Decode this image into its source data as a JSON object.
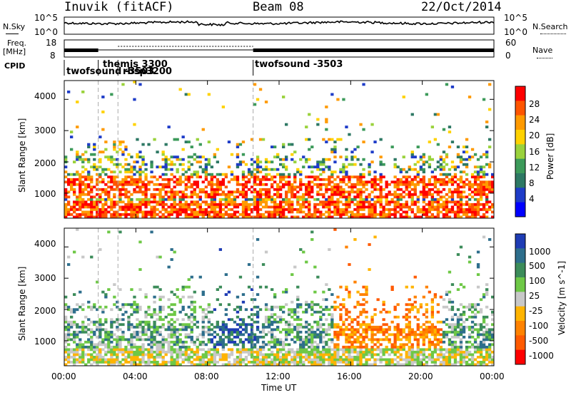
{
  "header": {
    "station": "Inuvik (fitACF)",
    "beam": "Beam 08",
    "date": "22/Oct/2014"
  },
  "noise_panel": {
    "left_label": "N.Sky",
    "right_label": "N.Search",
    "left_ticks": [
      "10^5",
      "10^0"
    ],
    "right_ticks": [
      "10^5",
      "10^0"
    ]
  },
  "freq_panel": {
    "left_label_1": "Freq.",
    "left_label_2": "[MHz]",
    "right_label": "Nave",
    "left_ticks": [
      "18",
      "8"
    ],
    "right_ticks": [
      "60",
      "0"
    ]
  },
  "cpid_panel": {
    "label": "CPID",
    "segments": [
      {
        "start_hour": 0.0,
        "text": "twofsound -3503"
      },
      {
        "start_hour": 1.9,
        "text": "themis 3300"
      },
      {
        "start_hour": 3.0,
        "text": "rbsp3200"
      },
      {
        "start_hour": 10.55,
        "text": "twofsound -3503"
      }
    ]
  },
  "power_panel": {
    "ylabel": "Slant Range [km]",
    "cb_label": "Power [dB]",
    "cb_ticks": [
      "28",
      "24",
      "20",
      "16",
      "12",
      "8",
      "4"
    ],
    "cb_colors": [
      "#ff0000",
      "#ff5500",
      "#ff9a00",
      "#ffd200",
      "#9ad23c",
      "#3c9a5a",
      "#2d7864",
      "#1e3cc8",
      "#0000ff"
    ]
  },
  "velocity_panel": {
    "ylabel": "Slant Range [km]",
    "cb_label": "Velocity [m s^-1]",
    "cb_ticks": [
      "1000",
      "500",
      "100",
      "25",
      "-25",
      "-100",
      "-500",
      "-1000"
    ],
    "cb_colors": [
      "#1e3cb4",
      "#2d6e8c",
      "#3c8c5a",
      "#6ec846",
      "#c8c8c8",
      "#ffb400",
      "#ff8200",
      "#ff5a00",
      "#ff0000"
    ]
  },
  "range_ticks": [
    "4000",
    "3000",
    "2000",
    "1000"
  ],
  "time_ticks": [
    "00:00",
    "04:00",
    "08:00",
    "12:00",
    "16:00",
    "20:00",
    "00:00"
  ],
  "xlabel": "Time UT",
  "chart_data": {
    "type": "heatmap",
    "x_range_hours": [
      0,
      24
    ],
    "y_range_km": [
      200,
      4600
    ],
    "x_ticks_hours": [
      0,
      4,
      8,
      12,
      16,
      20,
      24
    ],
    "y_ticks_km": [
      1000,
      2000,
      3000,
      4000
    ],
    "mode_change_hours": [
      1.9,
      3.0,
      10.55
    ],
    "power_scale_db": [
      0,
      32
    ],
    "velocity_scale_ms": [
      -1000,
      1000
    ]
  }
}
